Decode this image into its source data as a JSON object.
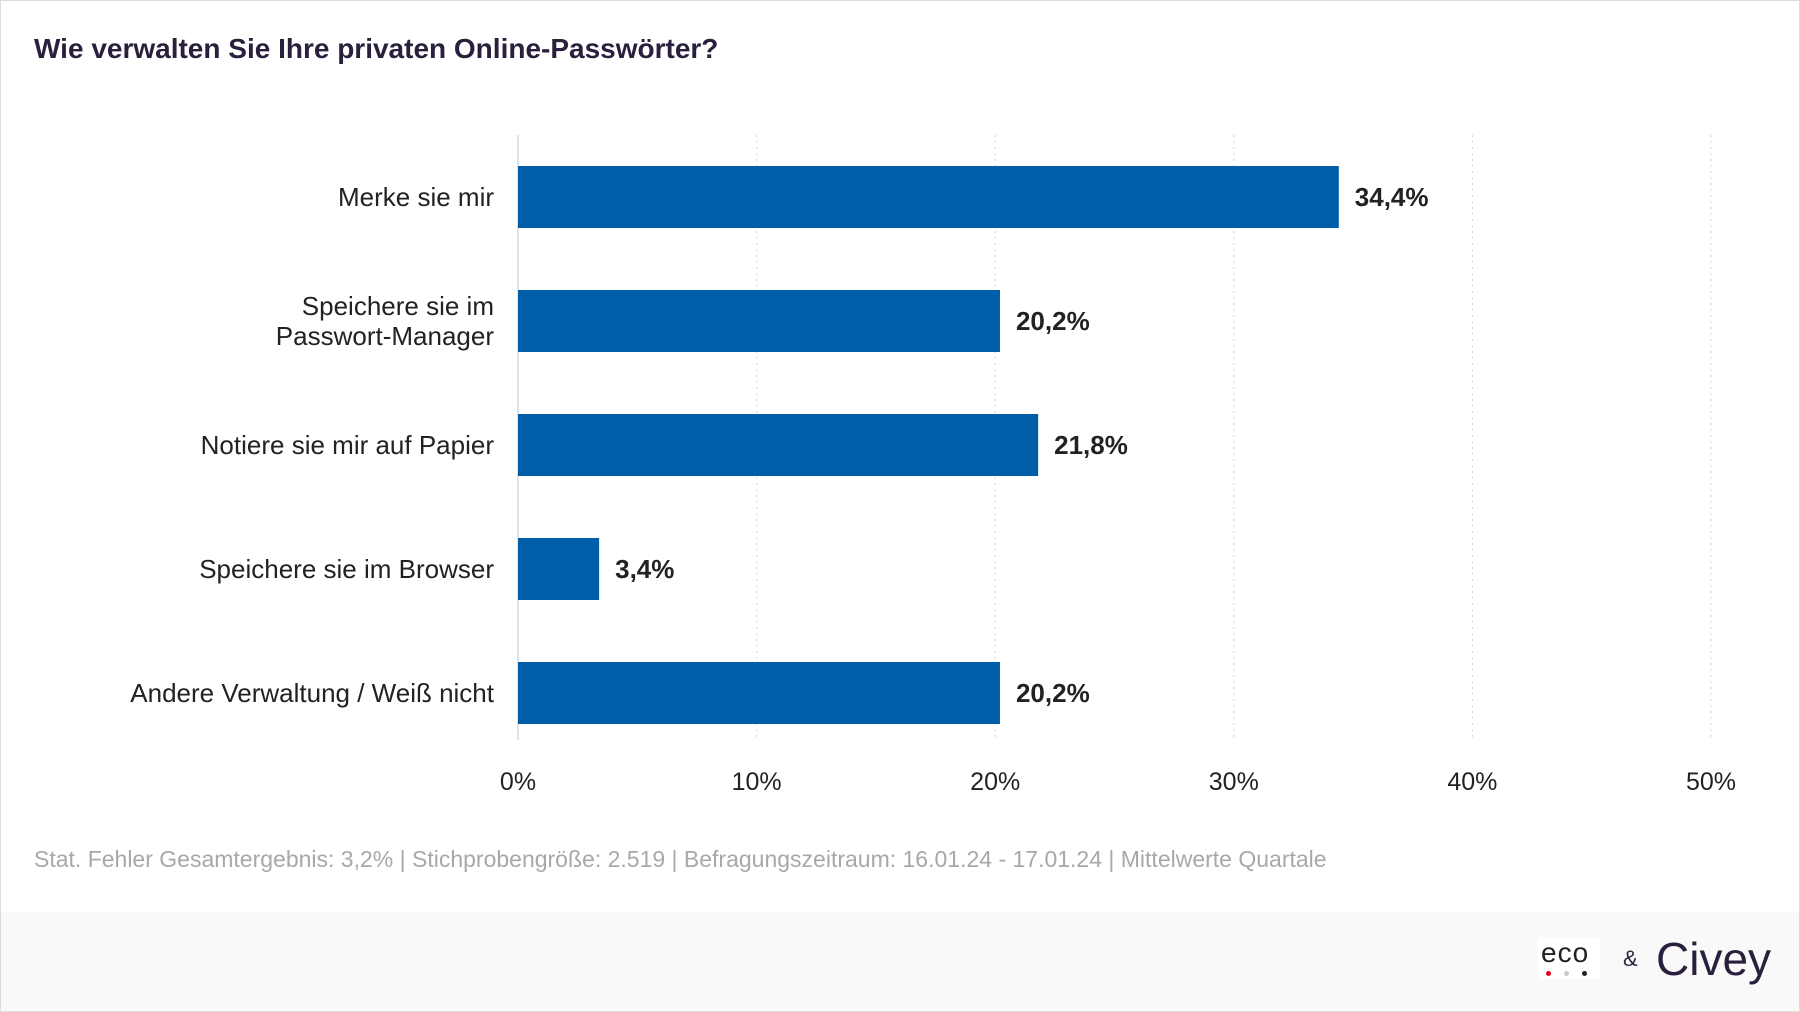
{
  "title": "Wie verwalten Sie Ihre privaten Online-Passwörter?",
  "footnote": "Stat. Fehler Gesamtergebnis: 3,2% | Stichprobengröße: 2.519 | Befragungszeitraum: 16.01.24 - 17.01.24 | Mittelwerte Quartale",
  "colors": {
    "bar": "#005ea8",
    "title": "#2a1f3d",
    "footnote": "#a8a8a8",
    "grid": "#d9d9d9"
  },
  "brand": {
    "eco": "eco",
    "amp": "&",
    "civey": "Civey"
  },
  "chart_data": {
    "type": "bar",
    "orientation": "horizontal",
    "categories": [
      [
        "Merke sie mir"
      ],
      [
        "Speichere sie im",
        "Passwort-Manager"
      ],
      [
        "Notiere sie mir auf Papier"
      ],
      [
        "Speichere sie im Browser"
      ],
      [
        "Andere Verwaltung / Weiß nicht"
      ]
    ],
    "values": [
      34.4,
      20.2,
      21.8,
      3.4,
      20.2
    ],
    "value_labels": [
      "34,4%",
      "20,2%",
      "21,8%",
      "3,4%",
      "20,2%"
    ],
    "xlim": [
      0,
      50
    ],
    "xticks": [
      0,
      10,
      20,
      30,
      40,
      50
    ],
    "xtick_labels": [
      "0%",
      "10%",
      "20%",
      "30%",
      "40%",
      "50%"
    ],
    "grid": "vertical-dotted",
    "legend": "none"
  }
}
